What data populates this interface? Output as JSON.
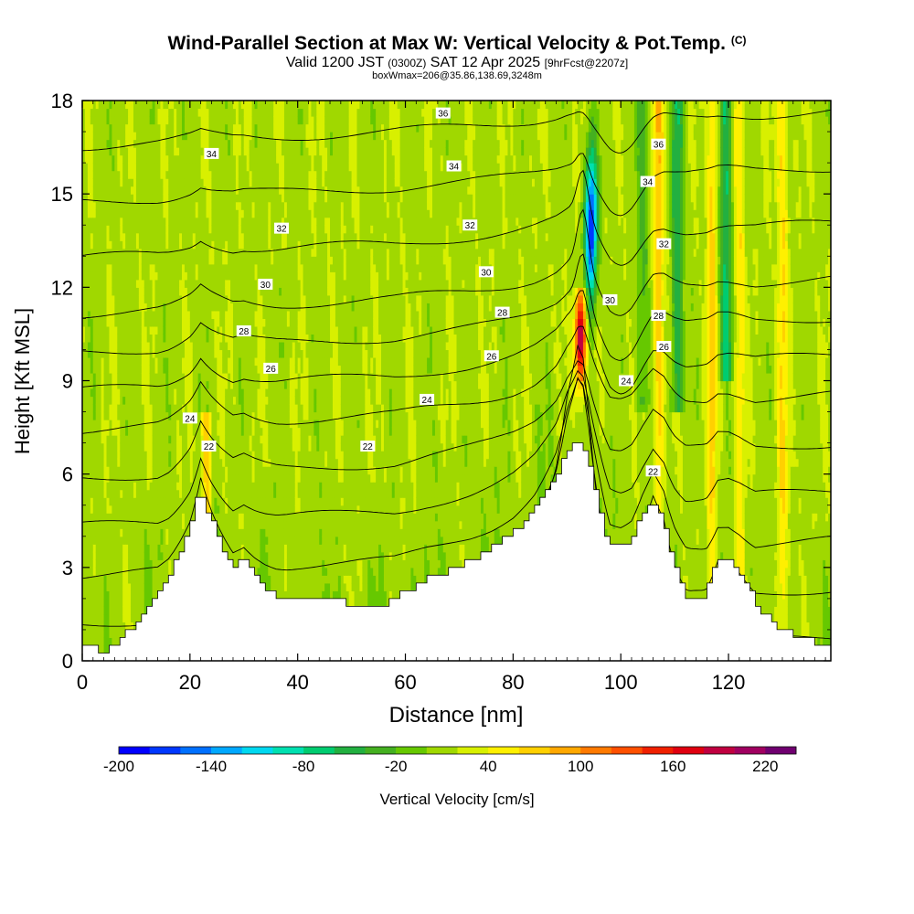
{
  "header": {
    "title": "Wind-Parallel Section at Max W: Vertical Velocity & Pot.Temp.",
    "title_mark": "(C)",
    "valid_prefix": "Valid 1200 JST",
    "valid_z": "(0300Z)",
    "valid_date": "SAT 12 Apr 2025",
    "forecast_tag": "[9hrFcst@2207z]",
    "box_info": "boxWmax=206@35.86,138.69,3248m"
  },
  "chart_data": {
    "type": "heatmap",
    "xlabel": "Distance [nm]",
    "ylabel": "Height [Kft MSL]",
    "xlim": [
      0,
      139
    ],
    "ylim": [
      0,
      18
    ],
    "x_ticks": [
      0,
      20,
      40,
      60,
      80,
      100,
      120
    ],
    "y_ticks": [
      0,
      3,
      6,
      9,
      12,
      15,
      18
    ],
    "colorbar": {
      "label": "Vertical Velocity [cm/s]",
      "tick_labels": [
        -200,
        -140,
        -80,
        -20,
        40,
        100,
        160,
        220
      ],
      "range": [
        -200,
        240
      ],
      "step": 20,
      "colors": [
        "#0000ff",
        "#0037ff",
        "#0070ff",
        "#00a8ff",
        "#00d8f0",
        "#00e0b0",
        "#00cc70",
        "#22b040",
        "#44b020",
        "#66c800",
        "#a0d800",
        "#d8f000",
        "#fff000",
        "#ffd000",
        "#ffa800",
        "#ff7a00",
        "#ff5000",
        "#f02000",
        "#e00010",
        "#c00040",
        "#a00060",
        "#700070"
      ]
    },
    "terrain": {
      "x": [
        0,
        4,
        8,
        12,
        16,
        20,
        22,
        24,
        26,
        28,
        30,
        32,
        34,
        36,
        38,
        40,
        44,
        48,
        52,
        56,
        60,
        64,
        68,
        72,
        76,
        80,
        84,
        88,
        90,
        92,
        93,
        94,
        96,
        98,
        100,
        102,
        104,
        106,
        108,
        110,
        112,
        114,
        116,
        118,
        120,
        122,
        124,
        126,
        128,
        130,
        132,
        134,
        136,
        139
      ],
      "height_kft": [
        0.5,
        0.3,
        0.8,
        1.5,
        2.5,
        4.2,
        5.5,
        4.6,
        3.8,
        3.0,
        3.3,
        2.8,
        2.4,
        2.1,
        2.0,
        2.0,
        1.9,
        1.9,
        1.8,
        1.8,
        2.2,
        2.6,
        2.9,
        3.2,
        3.6,
        4.1,
        4.8,
        5.8,
        6.6,
        7.1,
        7.0,
        6.5,
        5.2,
        3.7,
        3.6,
        3.8,
        4.6,
        5.2,
        4.6,
        3.2,
        2.1,
        1.8,
        2.1,
        3.3,
        3.3,
        2.9,
        2.3,
        1.7,
        1.3,
        0.9,
        0.9,
        0.7,
        0.6,
        0.6
      ]
    },
    "updraft_bands": [
      {
        "x": 92.5,
        "z_top": 12,
        "w": 200
      },
      {
        "x": 107,
        "z_top": 18,
        "w": 60
      },
      {
        "x": 117,
        "z_top": 18,
        "w": 50
      },
      {
        "x": 122,
        "z_top": 18,
        "w": 40
      },
      {
        "x": 130,
        "z_top": 18,
        "w": 45
      },
      {
        "x": 23,
        "z_top": 8,
        "w": 70
      }
    ],
    "downdraft_bands": [
      {
        "x": 94.5,
        "z_bottom": 10,
        "z_top": 18,
        "w": -200
      },
      {
        "x": 110.5,
        "z_bottom": 8,
        "z_top": 18,
        "w": -70
      },
      {
        "x": 119.5,
        "z_bottom": 9,
        "z_top": 18,
        "w": -80
      },
      {
        "x": 104,
        "z_bottom": 8,
        "z_top": 18,
        "w": -40
      }
    ],
    "theta_contours": {
      "unit": "C",
      "levels": [
        14,
        16,
        18,
        20,
        22,
        24,
        26,
        28,
        30,
        32,
        34,
        36
      ],
      "labels": [
        {
          "text": "36",
          "x": 67,
          "y": 17.6
        },
        {
          "text": "36",
          "x": 107,
          "y": 16.6
        },
        {
          "text": "34",
          "x": 24,
          "y": 16.3
        },
        {
          "text": "34",
          "x": 69,
          "y": 15.9
        },
        {
          "text": "34",
          "x": 105,
          "y": 15.4
        },
        {
          "text": "32",
          "x": 37,
          "y": 13.9
        },
        {
          "text": "32",
          "x": 72,
          "y": 14.0
        },
        {
          "text": "32",
          "x": 108,
          "y": 13.4
        },
        {
          "text": "30",
          "x": 34,
          "y": 12.1
        },
        {
          "text": "30",
          "x": 75,
          "y": 12.5
        },
        {
          "text": "30",
          "x": 98,
          "y": 11.6
        },
        {
          "text": "28",
          "x": 30,
          "y": 10.6
        },
        {
          "text": "28",
          "x": 78,
          "y": 11.2
        },
        {
          "text": "28",
          "x": 107,
          "y": 11.1
        },
        {
          "text": "26",
          "x": 35,
          "y": 9.4
        },
        {
          "text": "26",
          "x": 76,
          "y": 9.8
        },
        {
          "text": "26",
          "x": 108,
          "y": 10.1
        },
        {
          "text": "24",
          "x": 20,
          "y": 7.8
        },
        {
          "text": "24",
          "x": 64,
          "y": 8.4
        },
        {
          "text": "24",
          "x": 101,
          "y": 9.0
        },
        {
          "text": "22",
          "x": 23.5,
          "y": 6.9
        },
        {
          "text": "22",
          "x": 53,
          "y": 6.9
        },
        {
          "text": "22",
          "x": 106,
          "y": 6.1
        }
      ]
    }
  }
}
